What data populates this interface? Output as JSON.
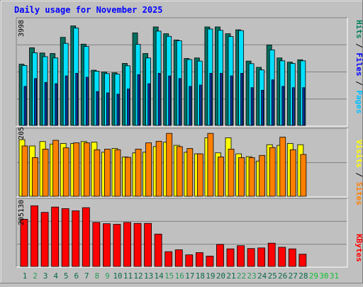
{
  "title": "Daily usage for November 2025",
  "colors": {
    "background": "#c0c0c0",
    "title": "#0000ff",
    "hits": "#00805c",
    "files": "#0000ff",
    "pages": "#00c0ff",
    "hits_bar": "#007060",
    "files_bar": "#00e0ff",
    "pages_bar": "#1030a0",
    "visits": "#ffff00",
    "sites": "#ff8000",
    "kbytes": "#ff0000",
    "day_weekday": "#0a6a46",
    "day_weekend": "#2a9a5a",
    "day_future": "#10c030"
  },
  "chart_data": [
    {
      "type": "bar",
      "panel": "top",
      "ymax_label": "3998",
      "ylim": [
        0,
        3998
      ],
      "right_label": {
        "parts": [
          "Pages",
          " / ",
          "Files",
          " / ",
          "Hits"
        ]
      },
      "categories": [
        "1",
        "2",
        "3",
        "4",
        "5",
        "6",
        "7",
        "8",
        "9",
        "10",
        "11",
        "12",
        "13",
        "14",
        "15",
        "16",
        "17",
        "18",
        "19",
        "20",
        "21",
        "22",
        "23",
        "24",
        "25",
        "26",
        "27",
        "28"
      ],
      "series": [
        {
          "name": "Hits",
          "values": [
            2350,
            2980,
            2780,
            2760,
            3380,
            3820,
            3120,
            2120,
            2050,
            2020,
            2380,
            3550,
            2760,
            3780,
            3520,
            3280,
            2570,
            2590,
            3780,
            3780,
            3520,
            3670,
            2470,
            2230,
            3090,
            2590,
            2430,
            2520
          ]
        },
        {
          "name": "Files",
          "values": [
            2300,
            2790,
            2640,
            2590,
            3150,
            3740,
            3030,
            2080,
            1990,
            1970,
            2290,
            3110,
            2590,
            3620,
            3420,
            3250,
            2530,
            2470,
            3700,
            3650,
            3410,
            3640,
            2370,
            2130,
            2900,
            2480,
            2380,
            2480
          ]
        },
        {
          "name": "Pages",
          "values": [
            1500,
            1800,
            1650,
            1600,
            1900,
            2000,
            1850,
            1300,
            1250,
            1200,
            1400,
            1950,
            1600,
            2000,
            1900,
            1800,
            1500,
            1550,
            2000,
            2000,
            1900,
            2000,
            1450,
            1350,
            1750,
            1500,
            1450,
            1450
          ]
        }
      ]
    },
    {
      "type": "bar",
      "panel": "middle",
      "ymax_label": "205",
      "ylim": [
        0,
        205
      ],
      "right_label": {
        "parts": [
          "Sites",
          " / ",
          "Visits"
        ]
      },
      "categories": [
        "1",
        "2",
        "3",
        "4",
        "5",
        "6",
        "7",
        "8",
        "9",
        "10",
        "11",
        "12",
        "13",
        "14",
        "15",
        "16",
        "17",
        "18",
        "19",
        "20",
        "21",
        "22",
        "23",
        "24",
        "25",
        "26",
        "27",
        "28"
      ],
      "series": [
        {
          "name": "Visits",
          "values": [
            180,
            160,
            174,
            166,
            168,
            168,
            174,
            172,
            140,
            152,
            125,
            138,
            140,
            158,
            172,
            162,
            140,
            135,
            186,
            138,
            186,
            135,
            126,
            112,
            164,
            162,
            168,
            164
          ]
        },
        {
          "name": "Sites",
          "values": [
            160,
            123,
            150,
            178,
            154,
            170,
            170,
            148,
            150,
            148,
            124,
            150,
            170,
            175,
            200,
            158,
            152,
            135,
            200,
            125,
            150,
            123,
            123,
            130,
            155,
            188,
            148,
            133
          ]
        }
      ]
    },
    {
      "type": "bar",
      "panel": "bottom",
      "ymax_label": "205130",
      "ylim": [
        0,
        205130
      ],
      "right_label": {
        "parts": [
          "KBytes"
        ]
      },
      "categories": [
        "1",
        "2",
        "3",
        "4",
        "5",
        "6",
        "7",
        "8",
        "9",
        "10",
        "11",
        "12",
        "13",
        "14",
        "15",
        "16",
        "17",
        "18",
        "19",
        "20",
        "21",
        "22",
        "23",
        "24",
        "25",
        "26",
        "27",
        "28"
      ],
      "series": [
        {
          "name": "KBytes",
          "values": [
            150000,
            193000,
            172000,
            189000,
            184000,
            177000,
            187000,
            140000,
            136000,
            134000,
            140000,
            137000,
            137000,
            103000,
            47000,
            53000,
            37000,
            44000,
            33000,
            70000,
            56000,
            66000,
            57000,
            59000,
            74000,
            61000,
            56000,
            39000
          ]
        }
      ]
    }
  ],
  "x_axis": {
    "days": [
      {
        "label": "1",
        "kind": "weekday"
      },
      {
        "label": "2",
        "kind": "weekend"
      },
      {
        "label": "3",
        "kind": "weekday"
      },
      {
        "label": "4",
        "kind": "weekday"
      },
      {
        "label": "5",
        "kind": "weekday"
      },
      {
        "label": "6",
        "kind": "weekday"
      },
      {
        "label": "7",
        "kind": "weekday"
      },
      {
        "label": "8",
        "kind": "weekend"
      },
      {
        "label": "9",
        "kind": "weekend"
      },
      {
        "label": "10",
        "kind": "weekday"
      },
      {
        "label": "11",
        "kind": "weekday"
      },
      {
        "label": "12",
        "kind": "weekday"
      },
      {
        "label": "13",
        "kind": "weekday"
      },
      {
        "label": "14",
        "kind": "weekday"
      },
      {
        "label": "15",
        "kind": "weekend"
      },
      {
        "label": "16",
        "kind": "weekend"
      },
      {
        "label": "17",
        "kind": "weekday"
      },
      {
        "label": "18",
        "kind": "weekday"
      },
      {
        "label": "19",
        "kind": "weekday"
      },
      {
        "label": "20",
        "kind": "weekday"
      },
      {
        "label": "21",
        "kind": "weekday"
      },
      {
        "label": "22",
        "kind": "weekend"
      },
      {
        "label": "23",
        "kind": "weekend"
      },
      {
        "label": "24",
        "kind": "weekday"
      },
      {
        "label": "25",
        "kind": "weekday"
      },
      {
        "label": "26",
        "kind": "weekday"
      },
      {
        "label": "27",
        "kind": "weekday"
      },
      {
        "label": "28",
        "kind": "weekday"
      },
      {
        "label": "29",
        "kind": "future"
      },
      {
        "label": "30",
        "kind": "future"
      },
      {
        "label": "31",
        "kind": "future"
      }
    ]
  }
}
